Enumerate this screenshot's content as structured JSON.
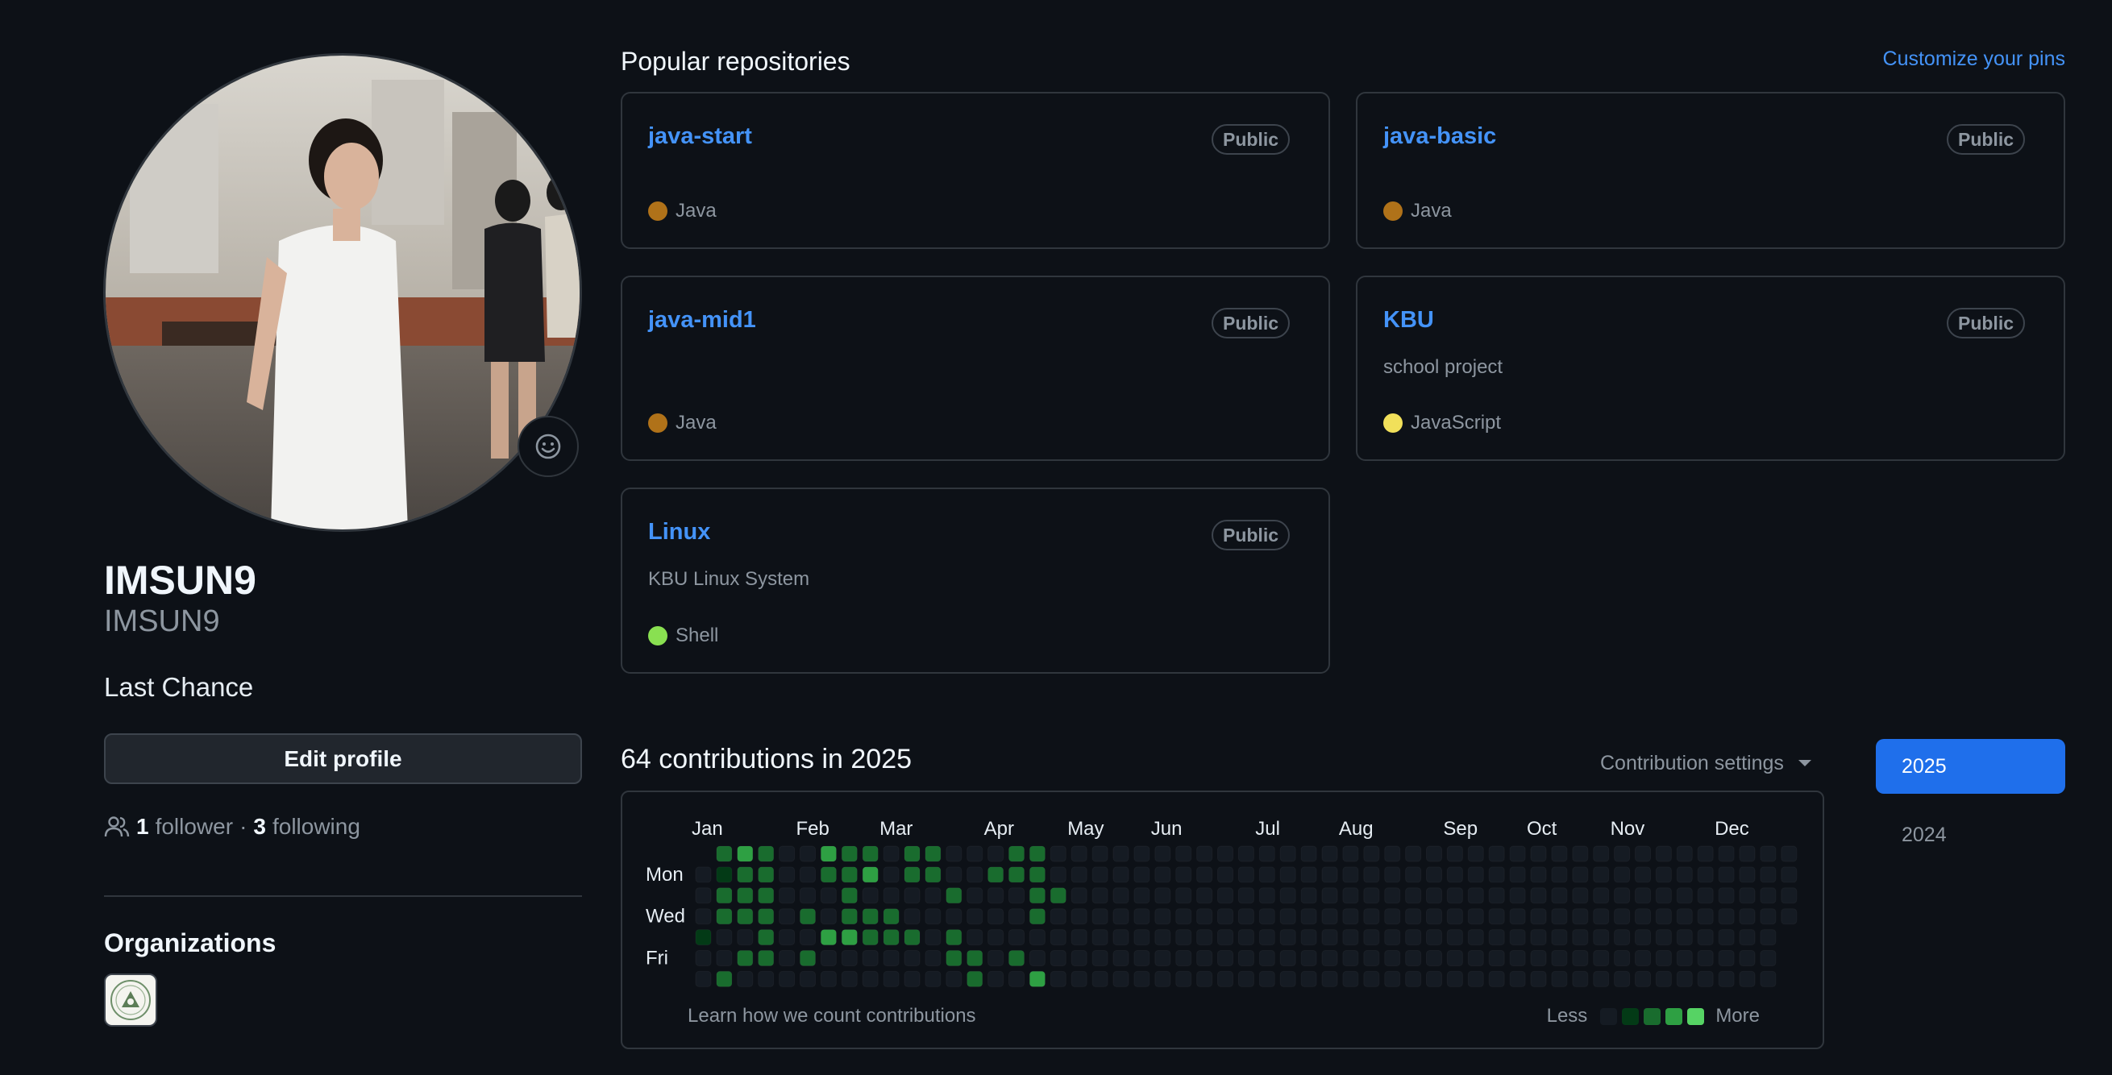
{
  "profile": {
    "name": "IMSUN9",
    "login": "IMSUN9",
    "bio": "Last Chance",
    "edit_label": "Edit profile",
    "followers_count": "1",
    "followers_label": "follower",
    "separator": "·",
    "following_count": "3",
    "following_label": "following",
    "status_icon": "smiley-icon",
    "organizations_title": "Organizations"
  },
  "pinned": {
    "title": "Popular repositories",
    "customize_label": "Customize your pins",
    "repos": [
      {
        "name": "java-start",
        "visibility": "Public",
        "description": "",
        "language": "Java",
        "lang_color": "#b07219"
      },
      {
        "name": "java-basic",
        "visibility": "Public",
        "description": "",
        "language": "Java",
        "lang_color": "#b07219"
      },
      {
        "name": "java-mid1",
        "visibility": "Public",
        "description": "",
        "language": "Java",
        "lang_color": "#b07219"
      },
      {
        "name": "KBU",
        "visibility": "Public",
        "description": "school project",
        "language": "JavaScript",
        "lang_color": "#f1e05a"
      },
      {
        "name": "Linux",
        "visibility": "Public",
        "description": "KBU Linux System",
        "language": "Shell",
        "lang_color": "#89e051"
      }
    ]
  },
  "contributions": {
    "title": "64 contributions in 2025",
    "settings_label": "Contribution settings",
    "months": [
      "Jan",
      "Feb",
      "Mar",
      "Apr",
      "May",
      "Jun",
      "Jul",
      "Aug",
      "Sep",
      "Oct",
      "Nov",
      "Dec"
    ],
    "days": [
      "Mon",
      "Wed",
      "Fri"
    ],
    "learn_label": "Learn how we count contributions",
    "legend_less": "Less",
    "legend_more": "More",
    "colors": [
      "#151b23",
      "#033a16",
      "#196c2e",
      "#2ea043",
      "#56d364"
    ],
    "levels": [
      [
        0,
        0,
        0,
        0,
        1,
        0,
        0
      ],
      [
        2,
        1,
        2,
        2,
        0,
        0,
        2
      ],
      [
        3,
        2,
        2,
        2,
        0,
        2,
        0
      ],
      [
        2,
        2,
        2,
        2,
        2,
        2,
        0
      ],
      [
        0,
        0,
        0,
        0,
        0,
        0,
        0
      ],
      [
        0,
        0,
        0,
        2,
        0,
        2,
        0
      ],
      [
        3,
        2,
        0,
        0,
        3,
        0,
        0
      ],
      [
        2,
        2,
        2,
        2,
        3,
        0,
        0
      ],
      [
        2,
        3,
        0,
        2,
        2,
        0,
        0
      ],
      [
        0,
        0,
        0,
        2,
        2,
        0,
        0
      ],
      [
        2,
        2,
        0,
        0,
        2,
        0,
        0
      ],
      [
        2,
        2,
        0,
        0,
        0,
        0,
        0
      ],
      [
        0,
        0,
        2,
        0,
        2,
        2,
        0
      ],
      [
        0,
        0,
        0,
        0,
        0,
        2,
        2
      ],
      [
        0,
        2,
        0,
        0,
        0,
        0,
        0
      ],
      [
        2,
        2,
        0,
        0,
        0,
        2,
        0
      ],
      [
        2,
        2,
        2,
        2,
        0,
        0,
        3
      ],
      [
        0,
        0,
        2,
        0,
        0,
        0,
        0
      ]
    ],
    "weeks": 53
  },
  "years": [
    "2025",
    "2024"
  ]
}
